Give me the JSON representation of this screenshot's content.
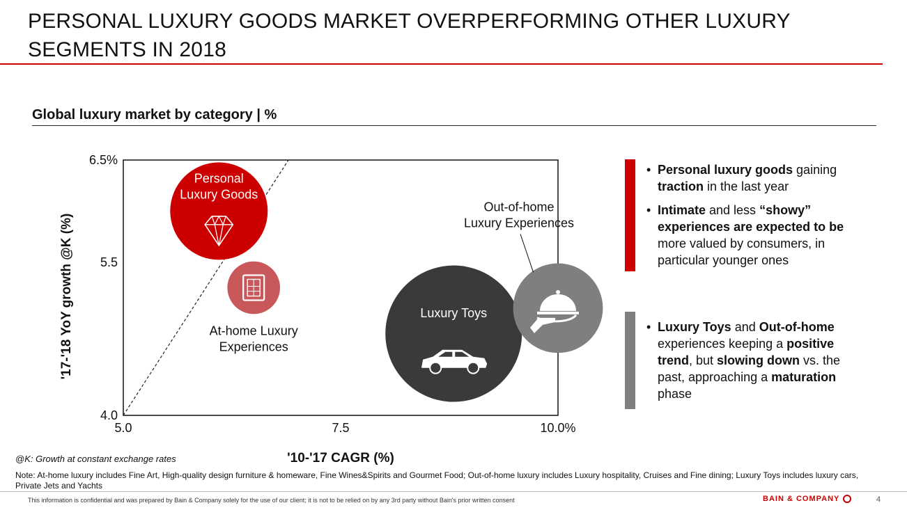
{
  "title": "PERSONAL LUXURY GOODS MARKET OVERPERFORMING OTHER LUXURY SEGMENTS IN 2018",
  "subtitle": "Global luxury market by category | %",
  "colors": {
    "accent_red": "#cc0000",
    "dark_grey": "#3a3a3a",
    "mid_grey": "#7f7f7f",
    "soft_red": "#c9585a"
  },
  "chart_data": {
    "type": "scatter",
    "variant": "bubble",
    "xlabel": "'10-'17 CAGR (%)",
    "ylabel": "'17-'18 YoY growth @K (%)",
    "xlim": [
      5.0,
      10.0
    ],
    "ylim": [
      4.0,
      6.5
    ],
    "x_ticks": [
      "5.0",
      "7.5",
      "10.0%"
    ],
    "y_ticks": [
      "4.0",
      "5.5",
      "6.5%"
    ],
    "x_tick_values": [
      5.0,
      7.5,
      10.0
    ],
    "y_tick_values": [
      4.0,
      5.5,
      6.5
    ],
    "grid": false,
    "reference_line": {
      "style": "dashed",
      "from": [
        5.0,
        4.0
      ],
      "to": [
        6.9,
        6.5
      ]
    },
    "series": [
      {
        "name": "Personal Luxury Goods",
        "label_lines": [
          "Personal",
          "Luxury Goods"
        ],
        "x": 6.1,
        "y": 6.0,
        "size": 1.0,
        "color": "#cc0000",
        "icon": "diamond-icon",
        "label_position": "inside"
      },
      {
        "name": "At-home Luxury Experiences",
        "label_lines": [
          "At-home Luxury",
          "Experiences"
        ],
        "x": 6.5,
        "y": 5.25,
        "size": 0.54,
        "color": "#c9585a",
        "icon": "painting-frame-icon",
        "label_position": "below"
      },
      {
        "name": "Luxury Toys",
        "label_lines": [
          "Luxury Toys"
        ],
        "x": 8.8,
        "y": 4.8,
        "size": 1.4,
        "color": "#3a3a3a",
        "icon": "car-icon",
        "label_position": "inside"
      },
      {
        "name": "Out-of-home Luxury Experiences",
        "label_lines": [
          "Out-of-home",
          "Luxury Experiences"
        ],
        "x": 10.0,
        "y": 5.05,
        "size": 0.92,
        "color": "#7f7f7f",
        "icon": "cloche-icon",
        "label_position": "above"
      }
    ]
  },
  "sidebar": {
    "bullet1": [
      {
        "text": "Personal luxury goods",
        "bold": true
      },
      {
        "text": " gaining ",
        "bold": false
      },
      {
        "text": "traction",
        "bold": true
      },
      {
        "text": " in the last year",
        "bold": false
      }
    ],
    "bullet2": [
      {
        "text": "Intimate",
        "bold": true
      },
      {
        "text": " and less ",
        "bold": false
      },
      {
        "text": "“showy” experiences are expected to be",
        "bold": true
      },
      {
        "text": " more valued by consumers, in particular younger ones",
        "bold": false
      }
    ],
    "bullet3": [
      {
        "text": "Luxury Toys",
        "bold": true
      },
      {
        "text": " and ",
        "bold": false
      },
      {
        "text": "Out-of-home",
        "bold": true
      },
      {
        "text": " experiences keeping a ",
        "bold": false
      },
      {
        "text": "positive trend",
        "bold": true
      },
      {
        "text": ", but ",
        "bold": false
      },
      {
        "text": "slowing down",
        "bold": true
      },
      {
        "text": " vs. the past, approaching a ",
        "bold": false
      },
      {
        "text": "maturation",
        "bold": true
      },
      {
        "text": " phase",
        "bold": false
      }
    ]
  },
  "k_note": "@K: Growth at constant exchange rates",
  "note": "Note: At-home luxury includes Fine Art, High-quality design furniture & homeware, Fine Wines&Spirits and Gourmet Food; Out-of-home luxury includes Luxury hospitality, Cruises and Fine dining; Luxury Toys includes luxury cars, Private Jets and Yachts",
  "footer": {
    "confidential": "This information is confidential and was prepared by Bain & Company solely for the use of our client; it is not to be relied on by any 3rd party without Bain's prior written consent",
    "brand": "BAIN & COMPANY",
    "page": "4"
  }
}
